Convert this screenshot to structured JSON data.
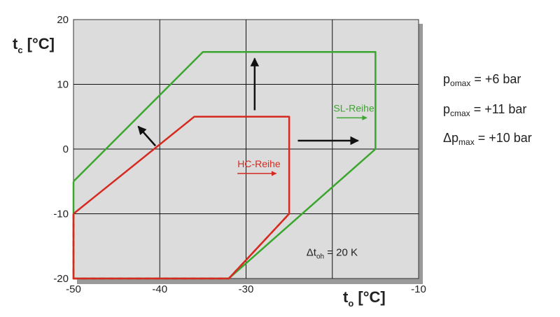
{
  "chart_data": {
    "type": "line",
    "xlim": [
      -50,
      -10
    ],
    "ylim": [
      -20,
      20
    ],
    "x_ticks": [
      -50,
      -40,
      -30,
      -20,
      -10
    ],
    "y_ticks": [
      -20,
      -10,
      0,
      10,
      20
    ],
    "x_tick_labels": [
      "-50",
      "-40",
      "-30",
      "",
      "-10"
    ],
    "y_tick_labels": [
      "-20",
      "-10",
      "0",
      "10",
      "20"
    ],
    "grid": true,
    "xlabel": {
      "main": "t",
      "sub": "o",
      "unit": " [°C]"
    },
    "ylabel": {
      "main": "t",
      "sub": "c",
      "unit": " [°C]"
    },
    "annotation": {
      "main": "Δt",
      "sub": "oh",
      "rest": " = 20 K",
      "x": -23,
      "y": -16.5
    },
    "series": [
      {
        "name": "SL-Reihe",
        "color": "#3aa62e",
        "style": "solid",
        "points": [
          [
            -50,
            -5
          ],
          [
            -35,
            15
          ],
          [
            -15,
            15
          ],
          [
            -15,
            0
          ],
          [
            -32,
            -20
          ],
          [
            -50,
            -20
          ],
          [
            -50,
            -5
          ]
        ]
      },
      {
        "name": "HC-Reihe",
        "color": "#d62a20",
        "style": "solid",
        "points": [
          [
            -50,
            -10
          ],
          [
            -36,
            5
          ],
          [
            -25,
            5
          ],
          [
            -25,
            -10
          ],
          [
            -32,
            -20
          ],
          [
            -50,
            -20
          ],
          [
            -50,
            -10
          ]
        ]
      }
    ],
    "series_labels": [
      {
        "text": "SL-Reihe",
        "color": "#3aa62e",
        "x": -17.5,
        "y": 5.8,
        "arrow_from": -19.5,
        "arrow_to": -16
      },
      {
        "text": "HC-Reihe",
        "color": "#d62a20",
        "x": -28.5,
        "y": -2.8,
        "arrow_from": -31,
        "arrow_to": -26.5
      }
    ],
    "expansion_arrows": [
      {
        "from": [
          -29,
          6
        ],
        "to": [
          -29,
          14
        ]
      },
      {
        "from": [
          -24,
          1.3
        ],
        "to": [
          -17,
          1.3
        ]
      },
      {
        "from": [
          -40.5,
          0.5
        ],
        "to": [
          -42.5,
          3.5
        ]
      }
    ]
  },
  "notes": {
    "p_omax": {
      "main": "p",
      "sub": "omax",
      "rest": " = +6 bar"
    },
    "p_cmax": {
      "main": "p",
      "sub": "cmax",
      "rest": " = +11 bar"
    },
    "dp_max": {
      "main": "Δp",
      "sub": "max",
      "rest": " = +10 bar"
    }
  }
}
